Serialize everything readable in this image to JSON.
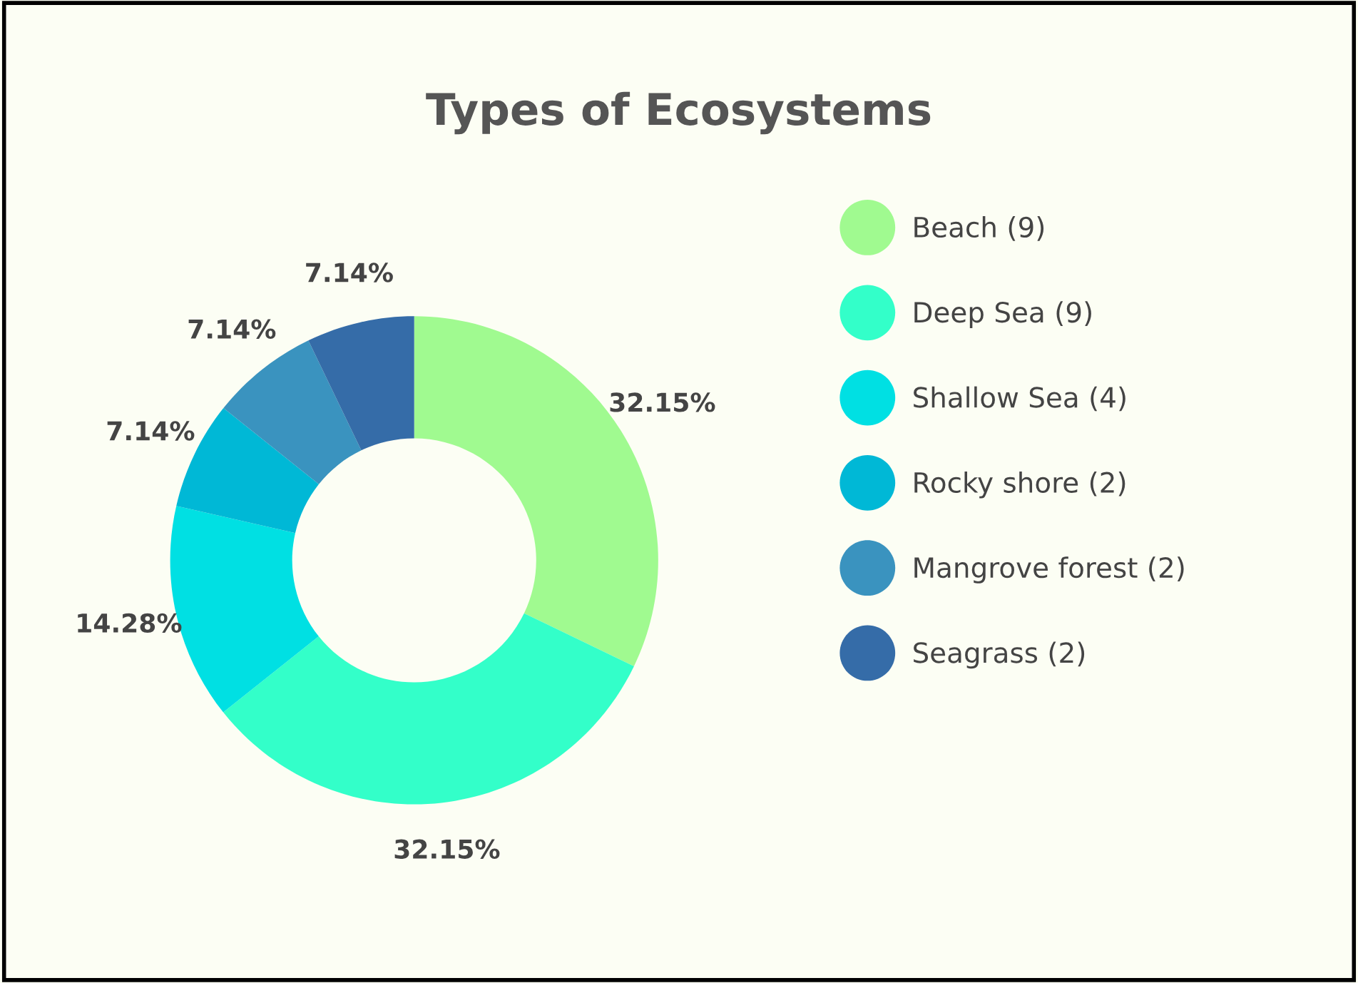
{
  "chart_data": {
    "type": "donut",
    "title": "Types of Ecosystems",
    "categories": [
      "Beach (9)",
      "Deep Sea (9)",
      "Shallow Sea (4)",
      "Rocky shore (2)",
      "Mangrove forest (2)",
      "Seagrass (2)"
    ],
    "values": [
      32.15,
      32.15,
      14.28,
      7.14,
      7.14,
      7.14
    ],
    "value_labels": [
      "32.15%",
      "32.15%",
      "14.28%",
      "7.14%",
      "7.14%",
      "7.14%"
    ],
    "colors": [
      "#a0fa90",
      "#33ffc9",
      "#00e0e3",
      "#00b8d6",
      "#3a93bf",
      "#356ca8"
    ],
    "legend": "right"
  }
}
